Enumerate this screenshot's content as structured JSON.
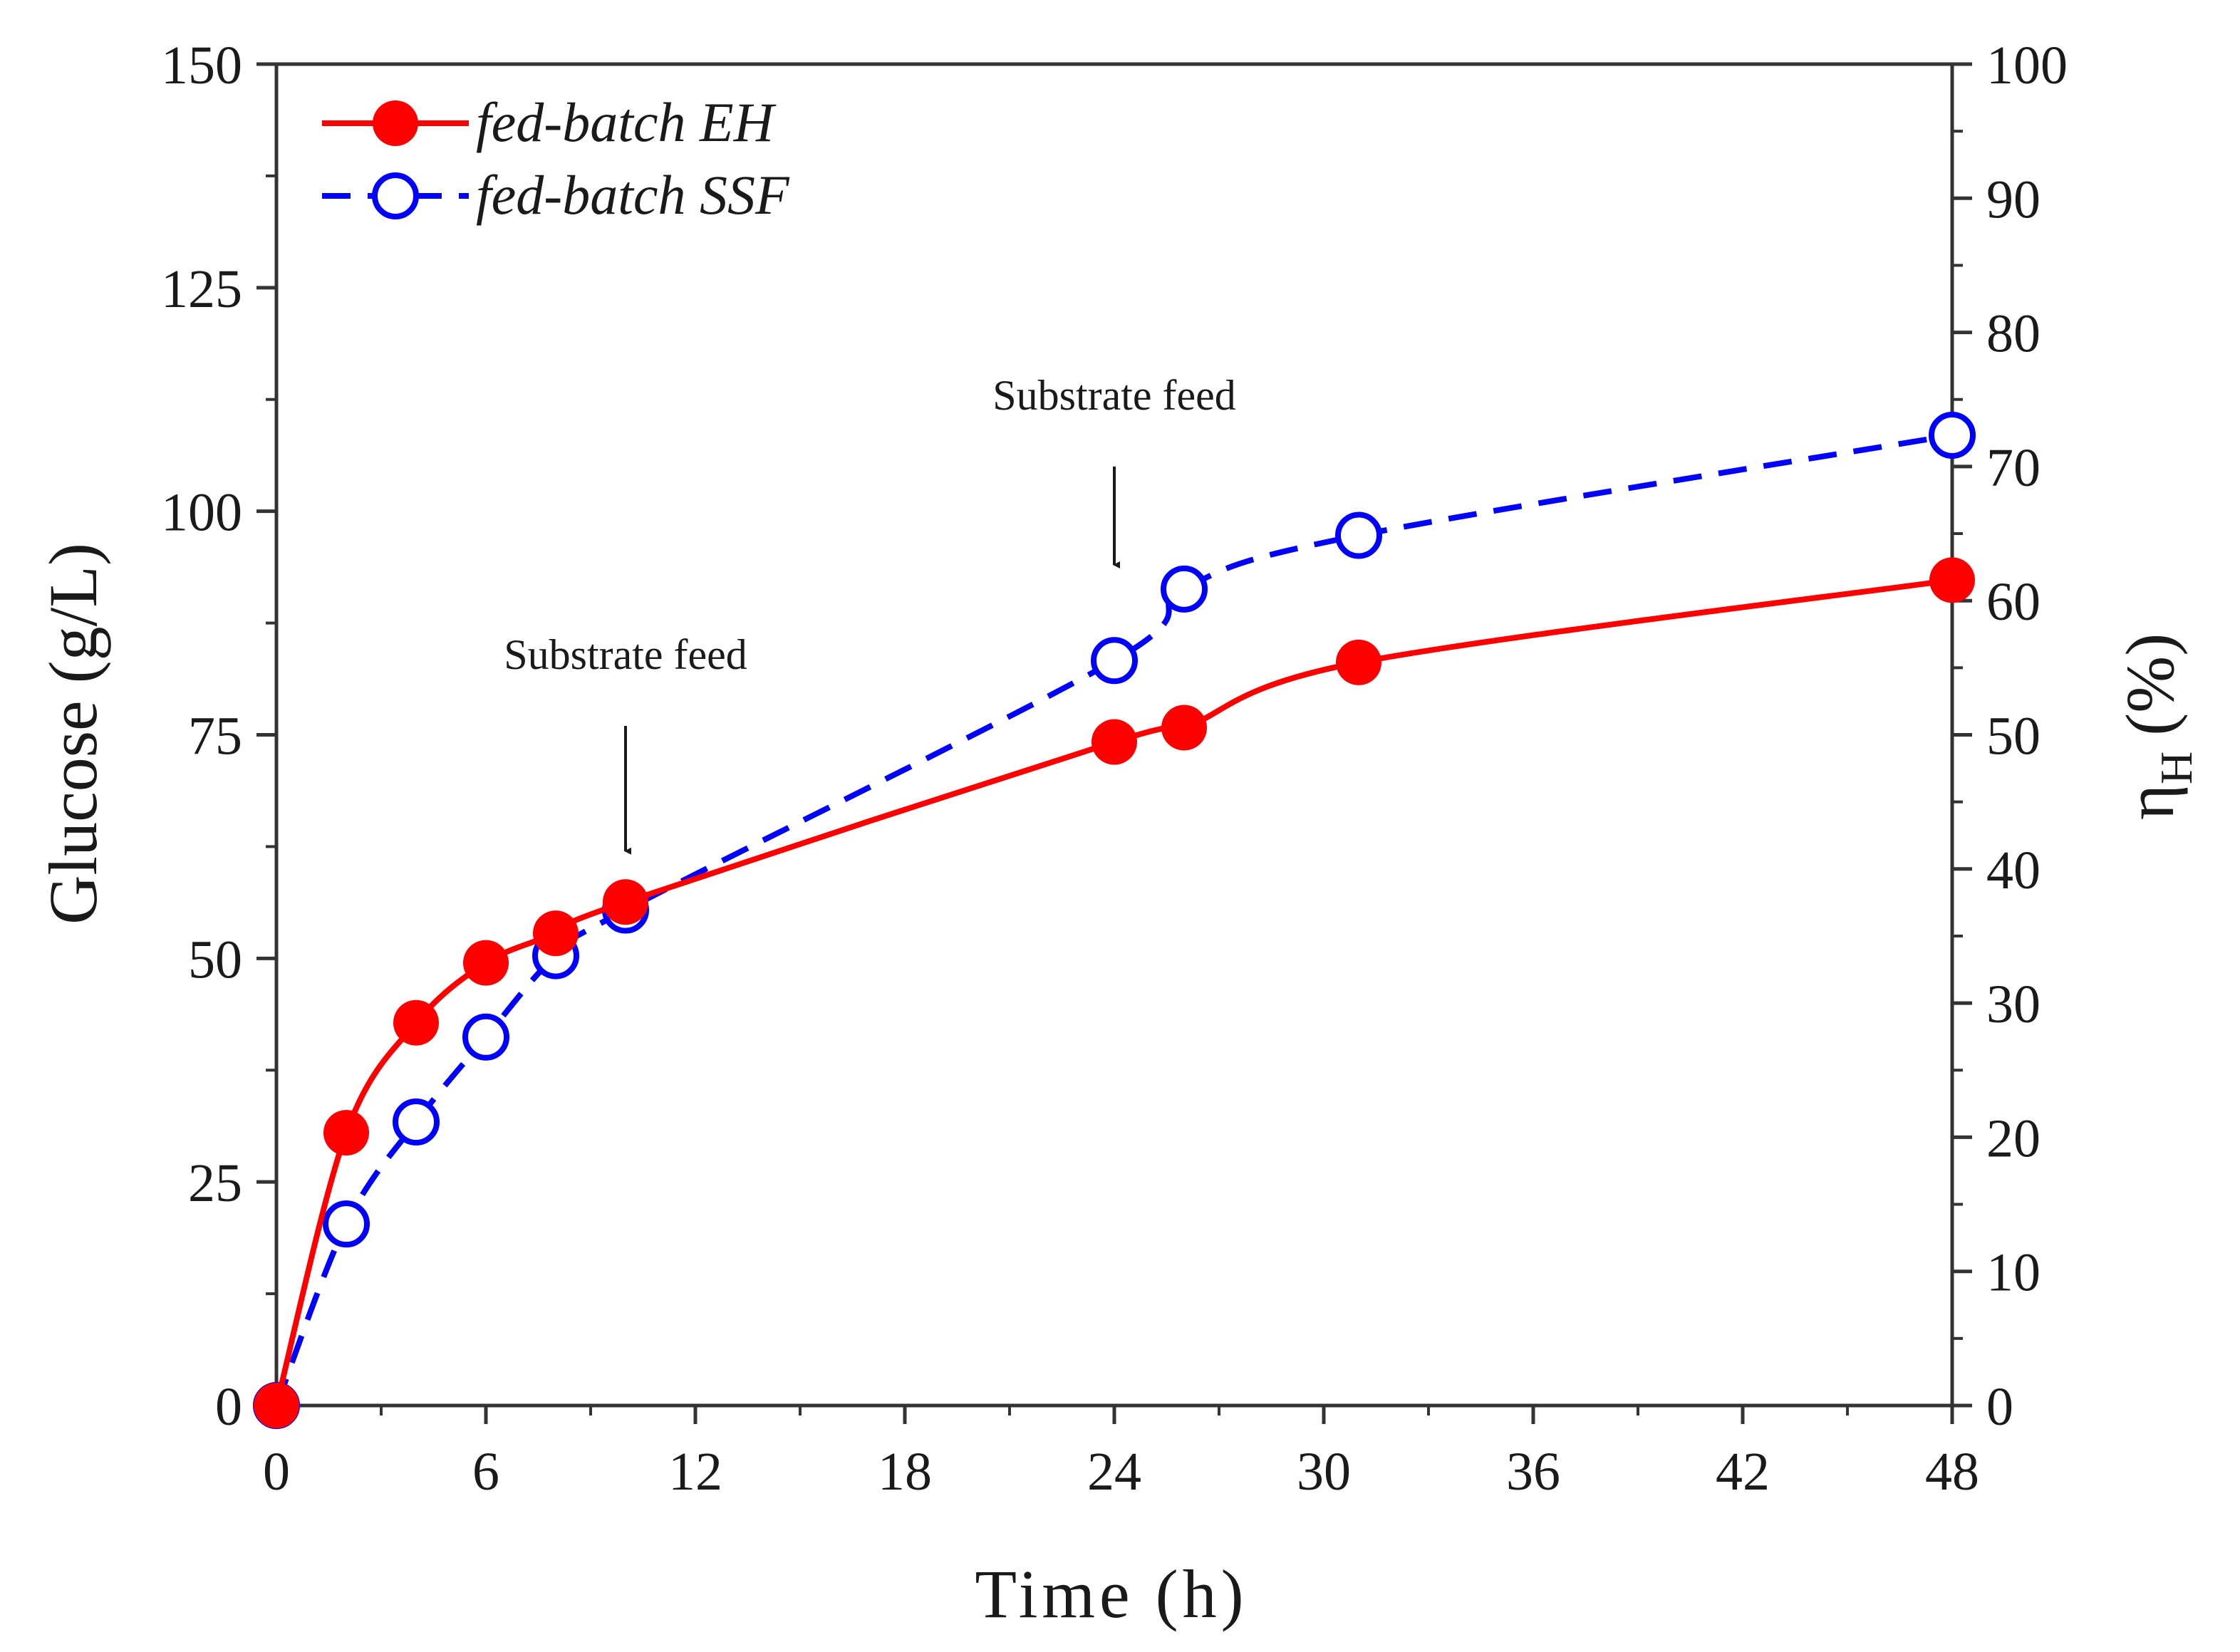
{
  "chart_data": {
    "type": "line",
    "x_label": "Time (h)",
    "y_label": "Glucose (g/L)",
    "y2_label_symbol": "η",
    "y2_label_sub": "H",
    "y2_label_unit": "(%)",
    "xlim": [
      0,
      48
    ],
    "ylim": [
      0,
      150
    ],
    "y2lim": [
      0,
      100
    ],
    "x_ticks": [
      0,
      6,
      12,
      18,
      24,
      30,
      36,
      42,
      48
    ],
    "x_tick_labels": [
      "0",
      "6",
      "12",
      "18",
      "24",
      "30",
      "36",
      "42",
      "48"
    ],
    "x_minor_ticks": [
      3,
      9,
      15,
      21,
      27,
      33,
      39,
      45
    ],
    "y_ticks": [
      0,
      25,
      50,
      75,
      100,
      125,
      150
    ],
    "y_tick_labels": [
      "0",
      "25",
      "50",
      "75",
      "100",
      "125",
      "150"
    ],
    "y_minor_ticks": [
      12.5,
      37.5,
      62.5,
      87.5,
      112.5,
      137.5
    ],
    "y2_ticks": [
      0,
      10,
      20,
      30,
      40,
      50,
      60,
      70,
      80,
      90,
      100
    ],
    "y2_tick_labels": [
      "0",
      "10",
      "20",
      "30",
      "40",
      "50",
      "60",
      "70",
      "80",
      "90",
      "100"
    ],
    "y2_minor_ticks": [
      5,
      15,
      25,
      35,
      45,
      55,
      65,
      75,
      85,
      95
    ],
    "series": [
      {
        "name": "fed-batch EH",
        "color": "#ff0000",
        "line_style": "solid",
        "marker": "filled-circle",
        "x": [
          0,
          2,
          4,
          6,
          8,
          10,
          24,
          26,
          31,
          48
        ],
        "y": [
          0,
          30.5,
          42.8,
          49.5,
          52.8,
          56.3,
          74.2,
          75.8,
          83.1,
          92.3
        ]
      },
      {
        "name": "fed-batch SSF",
        "color": "#0000ff",
        "line_style": "dashed",
        "marker": "open-circle",
        "x": [
          0,
          2,
          4,
          6,
          8,
          10,
          24,
          26,
          31,
          48
        ],
        "y": [
          0,
          20.3,
          31.7,
          41.2,
          50.3,
          55.4,
          83.3,
          91.3,
          97.3,
          108.5
        ]
      }
    ],
    "annotations": [
      {
        "text": "Substrate feed",
        "x": 10,
        "arrow_from": 76,
        "arrow_to": 62
      },
      {
        "text": "Substrate feed",
        "x": 24,
        "arrow_from": 105,
        "arrow_to": 94
      }
    ],
    "legend_position": "top-left"
  }
}
